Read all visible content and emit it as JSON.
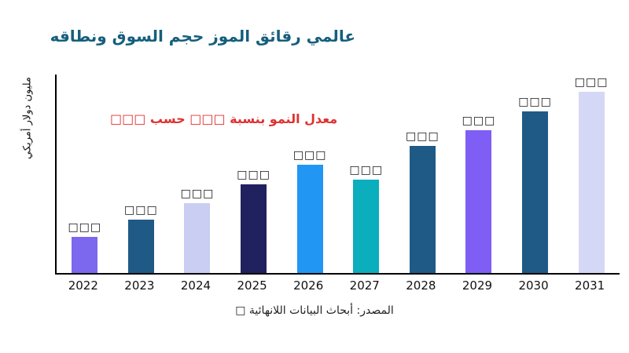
{
  "title": {
    "text": "عالمي رقائق الموز حجم السوق ونطاقه",
    "color": "#155f7c"
  },
  "growth_annotation": {
    "text": "معدل النمو بنسبة □□□ حسب □□□",
    "color": "#e03131"
  },
  "y_axis": {
    "label": "مليون دولار أمريكي"
  },
  "x_axis": {
    "label": ""
  },
  "source_note": {
    "text": "المصدر: أبحاث البيانات اللانهائية □"
  },
  "chart_data": {
    "type": "bar",
    "title": "عالمي رقائق الموز حجم السوق ونطاقه",
    "categories": [
      "2022",
      "2023",
      "2024",
      "2025",
      "2026",
      "2027",
      "2028",
      "2029",
      "2030",
      "2031"
    ],
    "values": [
      45,
      67,
      88,
      112,
      136,
      118,
      160,
      180,
      204,
      228
    ],
    "value_labels": [
      "□□□",
      "□□□",
      "□□□",
      "□□□",
      "□□□",
      "□□□",
      "□□□",
      "□□□",
      "□□□",
      "□□□"
    ],
    "bar_colors": [
      "#7b68ee",
      "#1f5a87",
      "#c9cef2",
      "#20215f",
      "#2196f3",
      "#0aaebc",
      "#1f5a87",
      "#7e5ef4",
      "#1f5a87",
      "#d4d7f5"
    ],
    "ylabel": "مليون دولار أمريكي",
    "xlabel": "",
    "ylim": [
      0,
      250
    ],
    "grid": false,
    "legend": false,
    "annotation": "معدل النمو بنسبة □□□ حسب □□□",
    "source": "المصدر: أبحاث البيانات اللانهائية □"
  }
}
